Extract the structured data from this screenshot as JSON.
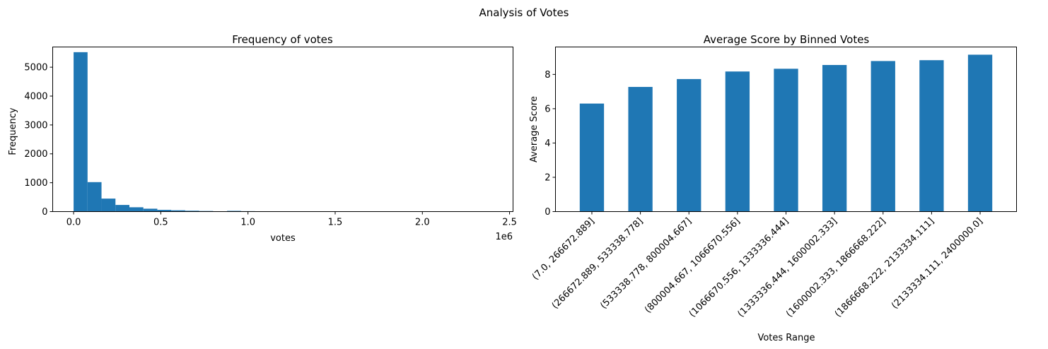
{
  "figure": {
    "suptitle": "Analysis of Votes"
  },
  "chart_data": [
    {
      "type": "bar",
      "subtype": "histogram",
      "title": "Frequency of votes",
      "xlabel": "votes",
      "ylabel": "Frequency",
      "x_offset_label": "1e6",
      "xlim": [
        -0.12,
        2.52
      ],
      "ylim": [
        0,
        5700
      ],
      "bin_width": 0.08,
      "bin_starts": [
        0.0,
        0.08,
        0.16,
        0.24,
        0.32,
        0.4,
        0.48,
        0.56,
        0.64,
        0.72,
        0.8,
        0.88,
        0.96
      ],
      "values": [
        5520,
        1020,
        450,
        230,
        150,
        100,
        60,
        45,
        30,
        20,
        10,
        25,
        15
      ],
      "x_ticks": [
        0.0,
        0.5,
        1.0,
        1.5,
        2.0,
        2.5
      ],
      "x_tick_labels": [
        "0.0",
        "0.5",
        "1.0",
        "1.5",
        "2.0",
        "2.5"
      ],
      "y_ticks": [
        0,
        1000,
        2000,
        3000,
        4000,
        5000
      ],
      "y_tick_labels": [
        "0",
        "1000",
        "2000",
        "3000",
        "4000",
        "5000"
      ],
      "color": "#1f77b4",
      "grid": false
    },
    {
      "type": "bar",
      "title": "Average Score by Binned Votes",
      "xlabel": "Votes Range",
      "ylabel": "Average Score",
      "ylim": [
        0,
        9.6
      ],
      "categories": [
        "(7.0, 266672.889]",
        "(266672.889, 533338.778]",
        "(533338.778, 800004.667]",
        "(800004.667, 1066670.556]",
        "(1066670.556, 1333336.444]",
        "(1333336.444, 1600002.333]",
        "(1600002.333, 1866668.222]",
        "(1866668.222, 2133334.111]",
        "(2133334.111, 2400000.0]"
      ],
      "values": [
        6.3,
        7.27,
        7.73,
        8.17,
        8.33,
        8.55,
        8.78,
        8.83,
        9.15
      ],
      "y_ticks": [
        0,
        2,
        4,
        6,
        8
      ],
      "y_tick_labels": [
        "0",
        "2",
        "4",
        "6",
        "8"
      ],
      "tick_rotation_deg": 45,
      "color": "#1f77b4",
      "grid": false
    }
  ]
}
